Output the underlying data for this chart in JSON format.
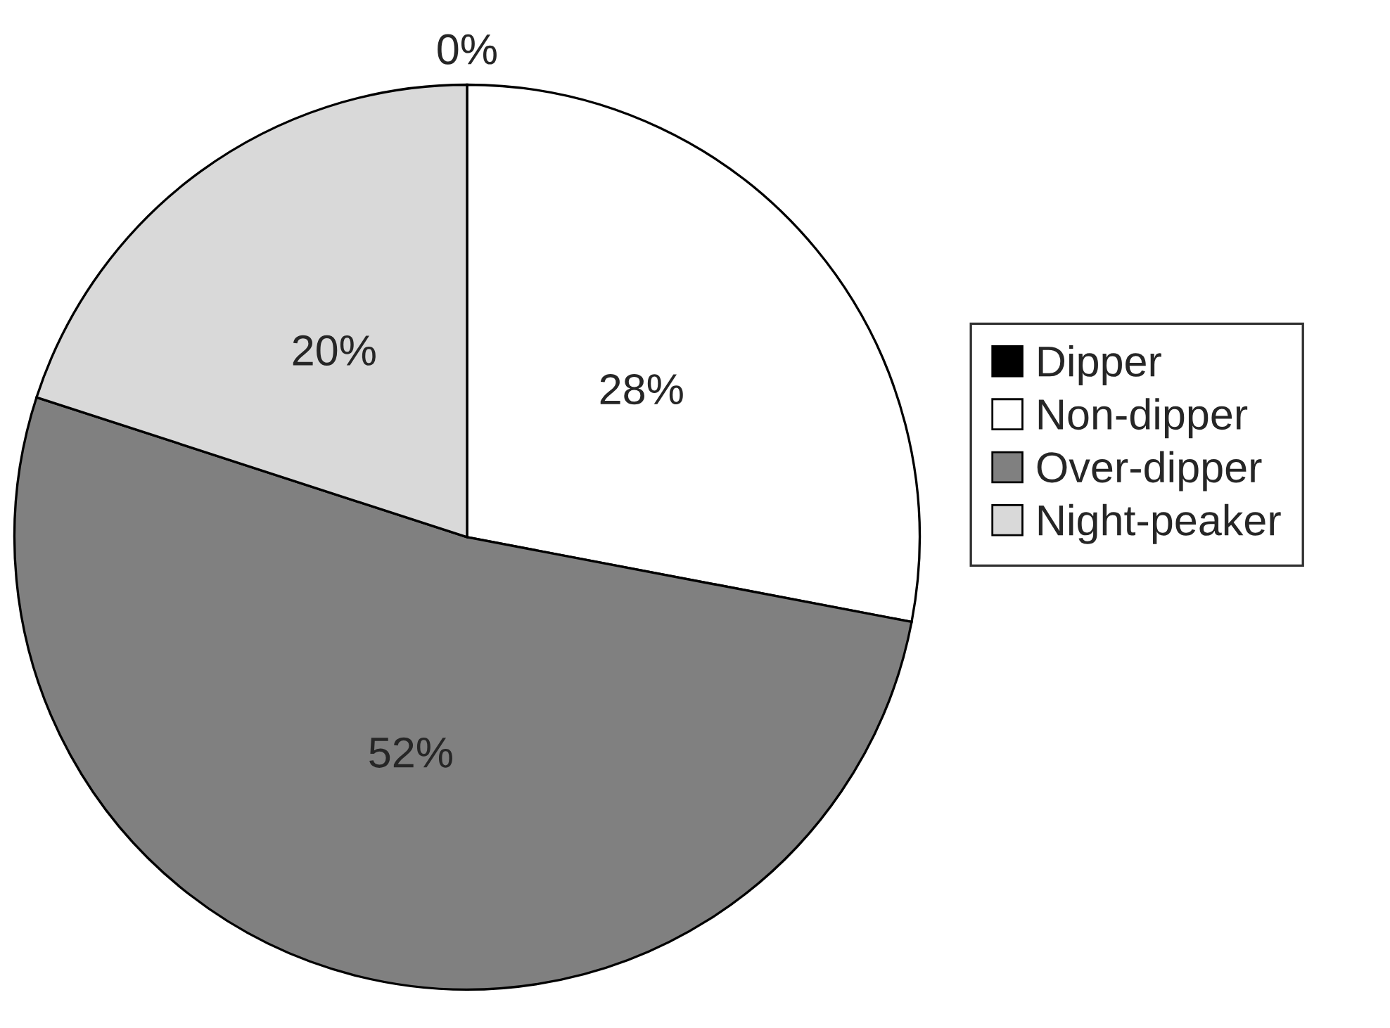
{
  "chart_data": {
    "type": "pie",
    "categories": [
      "Dipper",
      "Non-dipper",
      "Over-dipper",
      "Night-peaker"
    ],
    "values": [
      0,
      28,
      52,
      20
    ],
    "colors": [
      "#000000",
      "#ffffff",
      "#808080",
      "#d9d9d9"
    ],
    "value_labels": [
      "0%",
      "28%",
      "52%",
      "20%"
    ],
    "legend": "right"
  }
}
